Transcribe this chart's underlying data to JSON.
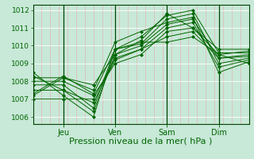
{
  "title": "",
  "xlabel": "Pression niveau de la mer( hPa )",
  "bg_color": "#c8e8d8",
  "plot_bg": "#c8e8d8",
  "grid_color_v": "#e8a8a8",
  "grid_color_h": "#ffffff",
  "line_color": "#006600",
  "ylim": [
    1005.6,
    1012.3
  ],
  "xlim": [
    0,
    100
  ],
  "xticks": [
    14,
    38,
    62,
    86
  ],
  "xtick_labels": [
    "Jeu",
    "Ven",
    "Sam",
    "Dim"
  ],
  "yticks": [
    1006,
    1007,
    1008,
    1009,
    1010,
    1011,
    1012
  ],
  "lines": [
    [
      0,
      1008.3,
      14,
      1007.5,
      28,
      1006.3,
      38,
      1009.5,
      50,
      1010.0,
      62,
      1011.2,
      74,
      1011.5,
      86,
      1009.3,
      100,
      1009.5
    ],
    [
      0,
      1007.8,
      14,
      1007.8,
      28,
      1006.5,
      38,
      1009.8,
      50,
      1010.1,
      62,
      1011.5,
      74,
      1011.8,
      86,
      1009.0,
      100,
      1009.3
    ],
    [
      0,
      1007.5,
      14,
      1007.5,
      28,
      1006.8,
      38,
      1009.2,
      50,
      1009.8,
      62,
      1011.0,
      74,
      1011.3,
      86,
      1008.8,
      100,
      1009.2
    ],
    [
      0,
      1008.0,
      14,
      1008.0,
      28,
      1007.2,
      38,
      1009.0,
      50,
      1009.5,
      62,
      1010.8,
      74,
      1011.0,
      86,
      1009.5,
      100,
      1009.0
    ],
    [
      0,
      1007.2,
      14,
      1008.2,
      28,
      1007.8,
      38,
      1009.5,
      50,
      1010.3,
      62,
      1011.8,
      74,
      1011.0,
      86,
      1009.8,
      100,
      1009.8
    ],
    [
      0,
      1007.0,
      14,
      1007.0,
      28,
      1007.0,
      38,
      1009.3,
      50,
      1009.8,
      62,
      1010.5,
      74,
      1010.8,
      86,
      1009.3,
      100,
      1009.4
    ],
    [
      0,
      1008.5,
      14,
      1007.2,
      28,
      1006.0,
      38,
      1009.8,
      50,
      1010.5,
      62,
      1011.7,
      74,
      1012.0,
      86,
      1009.6,
      100,
      1009.6
    ],
    [
      0,
      1008.2,
      14,
      1008.2,
      28,
      1007.5,
      38,
      1010.2,
      50,
      1010.8,
      62,
      1011.3,
      74,
      1011.6,
      86,
      1008.5,
      100,
      1009.1
    ],
    [
      0,
      1007.3,
      14,
      1008.3,
      28,
      1007.3,
      38,
      1009.8,
      50,
      1010.2,
      62,
      1010.2,
      74,
      1010.5,
      86,
      1009.5,
      100,
      1009.7
    ]
  ],
  "vline_step": 4,
  "xlabel_fontsize": 8,
  "ytick_fontsize": 6.5,
  "xtick_fontsize": 7
}
